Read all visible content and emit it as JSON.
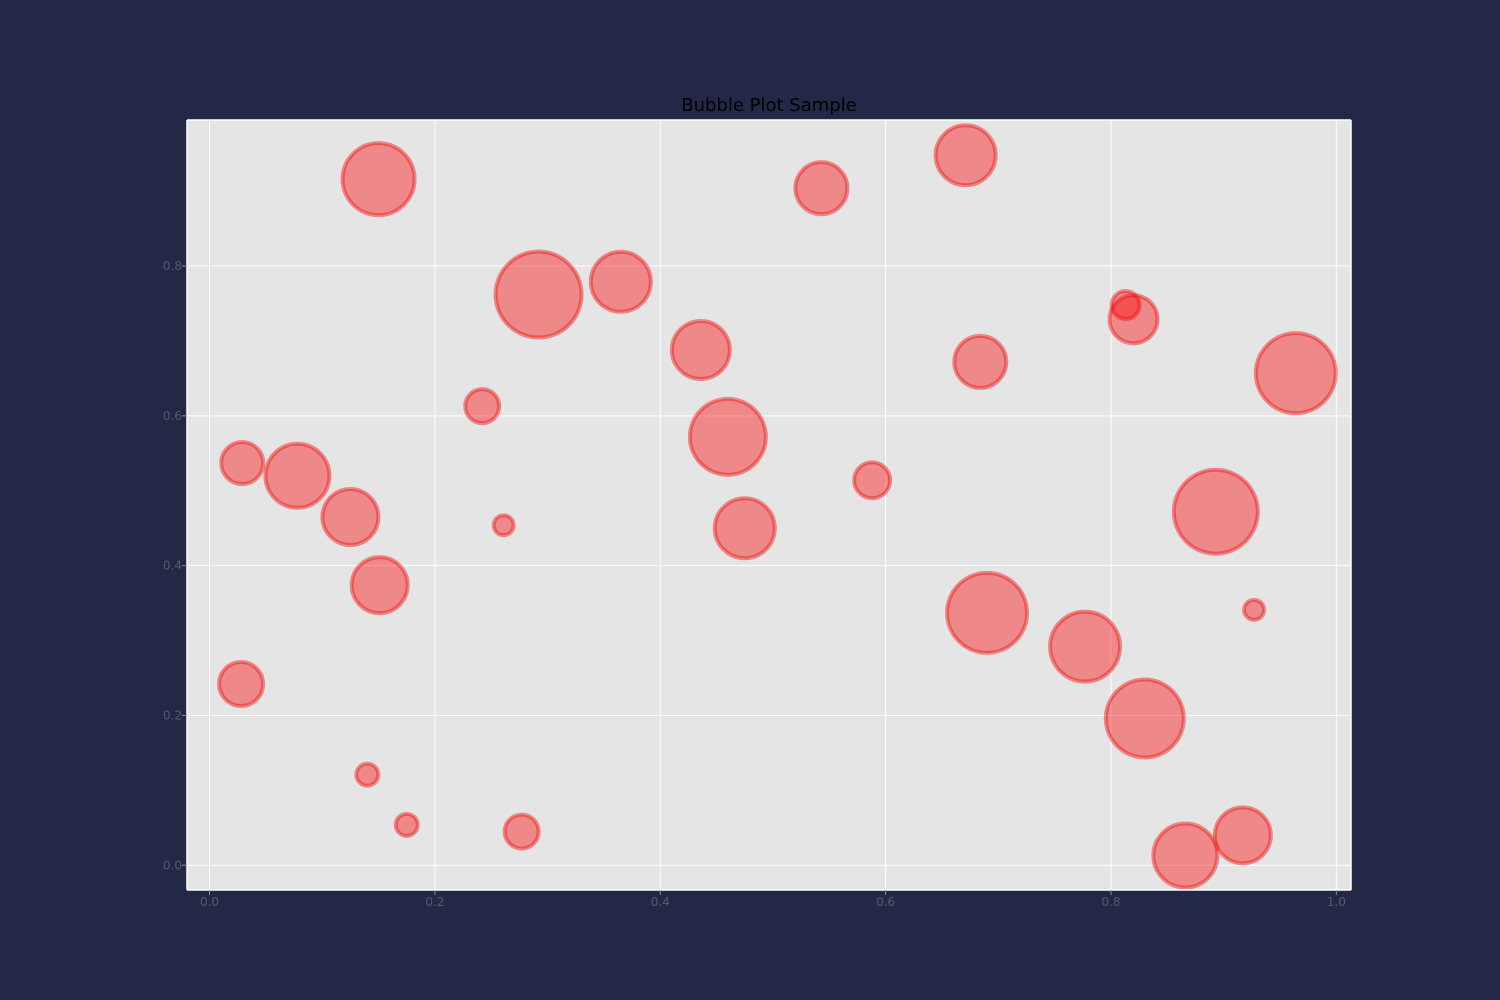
{
  "chart_data": {
    "type": "scatter",
    "subtype": "bubble",
    "title": "Bubble Plot Sample",
    "xlabel": "",
    "ylabel": "",
    "xlim": [
      -0.02,
      1.013
    ],
    "ylim": [
      -0.033,
      0.995
    ],
    "xticks": [
      "0.0",
      "0.2",
      "0.4",
      "0.6",
      "0.8",
      "1.0"
    ],
    "yticks": [
      "0.0",
      "0.2",
      "0.4",
      "0.6",
      "0.8"
    ],
    "grid": true,
    "colors": {
      "background": "#222845",
      "plot_area": "#e5e5e5",
      "grid": "#ffffff",
      "bubble_fill": "#ff0000",
      "bubble_stroke": "#ee1111"
    },
    "points": [
      {
        "x": 0.15,
        "y": 0.916,
        "size": 36
      },
      {
        "x": 0.543,
        "y": 0.904,
        "size": 26
      },
      {
        "x": 0.671,
        "y": 0.948,
        "size": 30
      },
      {
        "x": 0.292,
        "y": 0.762,
        "size": 43
      },
      {
        "x": 0.365,
        "y": 0.779,
        "size": 30
      },
      {
        "x": 0.436,
        "y": 0.688,
        "size": 29
      },
      {
        "x": 0.813,
        "y": 0.748,
        "size": 14
      },
      {
        "x": 0.82,
        "y": 0.729,
        "size": 24
      },
      {
        "x": 0.684,
        "y": 0.672,
        "size": 26
      },
      {
        "x": 0.964,
        "y": 0.657,
        "size": 40
      },
      {
        "x": 0.242,
        "y": 0.613,
        "size": 17
      },
      {
        "x": 0.46,
        "y": 0.572,
        "size": 38
      },
      {
        "x": 0.029,
        "y": 0.537,
        "size": 21
      },
      {
        "x": 0.078,
        "y": 0.52,
        "size": 32
      },
      {
        "x": 0.125,
        "y": 0.465,
        "size": 28
      },
      {
        "x": 0.261,
        "y": 0.454,
        "size": 10
      },
      {
        "x": 0.475,
        "y": 0.45,
        "size": 30
      },
      {
        "x": 0.588,
        "y": 0.514,
        "size": 18
      },
      {
        "x": 0.893,
        "y": 0.472,
        "size": 42
      },
      {
        "x": 0.151,
        "y": 0.374,
        "size": 28
      },
      {
        "x": 0.69,
        "y": 0.337,
        "size": 40
      },
      {
        "x": 0.777,
        "y": 0.292,
        "size": 35
      },
      {
        "x": 0.927,
        "y": 0.341,
        "size": 10
      },
      {
        "x": 0.028,
        "y": 0.242,
        "size": 22
      },
      {
        "x": 0.83,
        "y": 0.196,
        "size": 39
      },
      {
        "x": 0.14,
        "y": 0.121,
        "size": 11
      },
      {
        "x": 0.175,
        "y": 0.054,
        "size": 11
      },
      {
        "x": 0.277,
        "y": 0.045,
        "size": 17
      },
      {
        "x": 0.866,
        "y": 0.013,
        "size": 32
      },
      {
        "x": 0.917,
        "y": 0.04,
        "size": 28
      }
    ]
  }
}
